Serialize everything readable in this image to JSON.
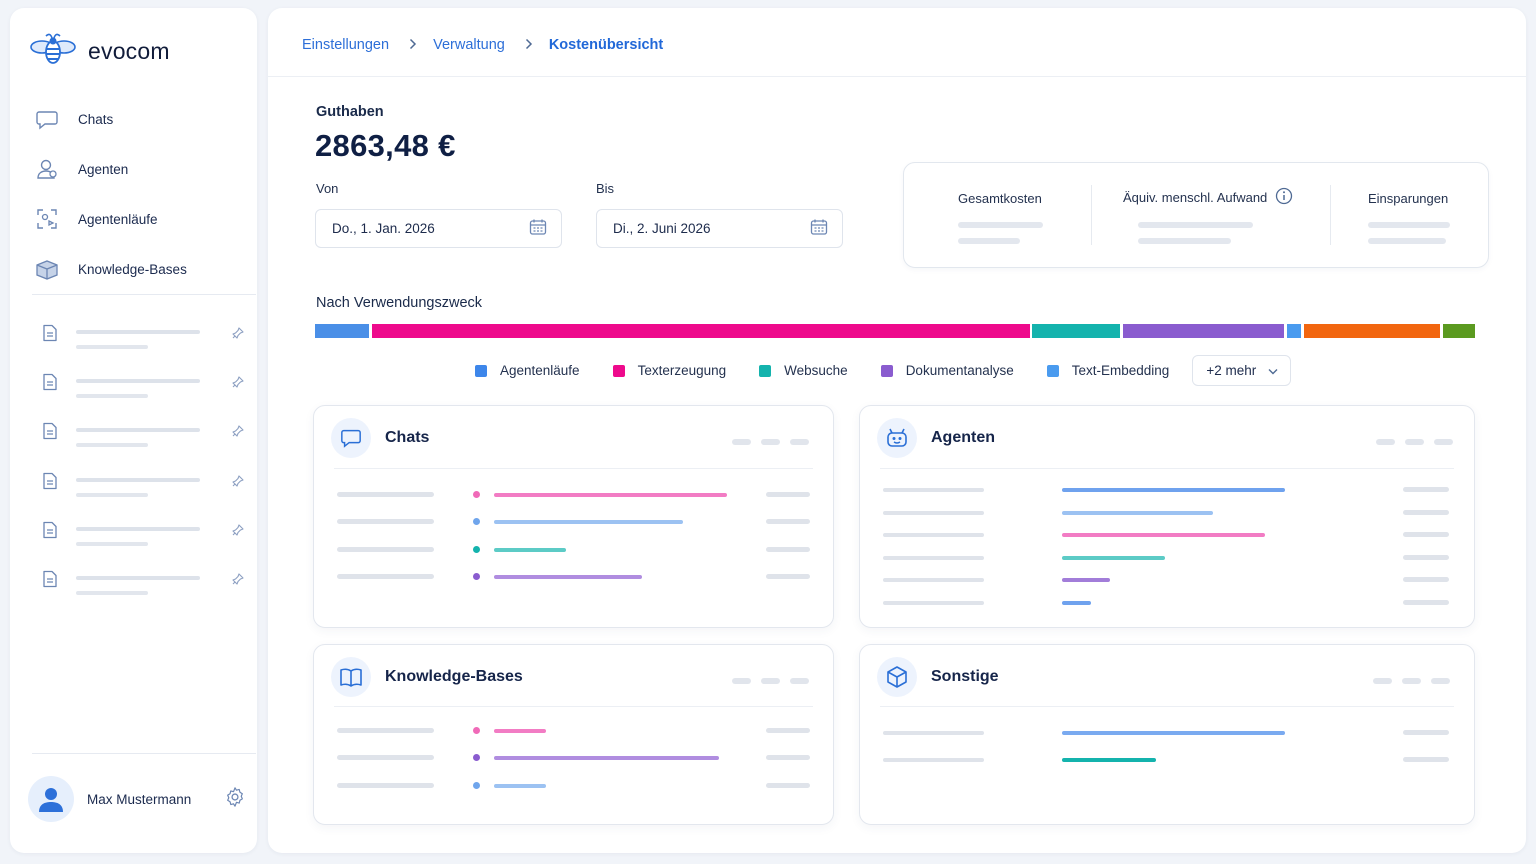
{
  "app": {
    "name": "evocom"
  },
  "colors": {
    "accent": "#2168d8",
    "agentenlaeufe": "#4a8fe7",
    "texterzeugung": "#ee0a8c",
    "websuche": "#14b3ad",
    "dokumentanalyse": "#8a5ccf",
    "text_embedding": "#4a9bef",
    "orange": "#f2660f",
    "green": "#5b9a20"
  },
  "sidebar": {
    "items": [
      {
        "label": "Chats",
        "icon": "chat-bubble-icon"
      },
      {
        "label": "Agenten",
        "icon": "agent-icon"
      },
      {
        "label": "Agentenläufe",
        "icon": "agent-runs-icon"
      },
      {
        "label": "Knowledge-Bases",
        "icon": "knowledge-base-icon"
      }
    ],
    "user": {
      "name": "Max Mustermann"
    }
  },
  "breadcrumb": {
    "items": [
      "Einstellungen",
      "Verwaltung",
      "Kostenübersicht"
    ]
  },
  "balance": {
    "label": "Guthaben",
    "value": "2863,48 €"
  },
  "dates": {
    "from_label": "Von",
    "from_value": "Do., 1. Jan. 2026",
    "to_label": "Bis",
    "to_value": "Di., 2. Juni 2026"
  },
  "stats": {
    "total_cost": "Gesamtkosten",
    "human_effort": "Äquiv. menschl. Aufwand",
    "savings": "Einsparungen"
  },
  "usage": {
    "label": "Nach Verwendungszweck",
    "legend": [
      "Agentenläufe",
      "Texterzeugung",
      "Websuche",
      "Dokumentanalyse",
      "Text-Embedding"
    ],
    "more_label": "+2 mehr"
  },
  "cards": {
    "chats": "Chats",
    "agenten": "Agenten",
    "knowledge": "Knowledge-Bases",
    "sonstige": "Sonstige"
  }
}
